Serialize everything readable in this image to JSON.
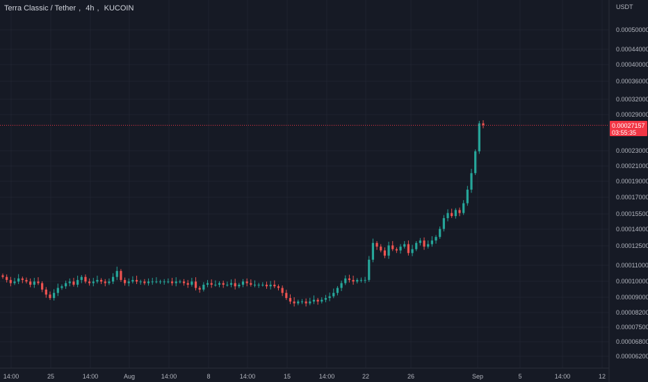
{
  "header": {
    "symbol": "Terra Classic / Tether",
    "interval": "4h",
    "exchange": "KUCOIN"
  },
  "price_axis": {
    "currency": "USDT",
    "labels": [
      "0.00050000",
      "0.00044000",
      "0.00040000",
      "0.00036000",
      "0.00032000",
      "0.00029000",
      "0.00023000",
      "0.00021000",
      "0.00019000",
      "0.00017000",
      "0.00015500",
      "0.00014000",
      "0.00012500",
      "0.00011000",
      "0.00010000",
      "0.00009000",
      "0.00008200",
      "0.00007500",
      "0.00006800",
      "0.00006200"
    ]
  },
  "last_price": {
    "value": "0.00027157",
    "countdown": "03:55:35",
    "color": "#f23645"
  },
  "time_axis": {
    "labels": [
      "14:00",
      "25",
      "14:00",
      "Aug",
      "14:00",
      "8",
      "14:00",
      "15",
      "14:00",
      "22",
      "26",
      "Sep",
      "5",
      "14:00",
      "12"
    ]
  },
  "colors": {
    "up": "#26a69a",
    "down": "#ef5350",
    "background": "#161a25",
    "grid": "#1f2330"
  },
  "chart_data": {
    "type": "candlestick",
    "title": "Terra Classic / Tether, 4h, KUCOIN",
    "ylabel": "USDT",
    "y_scale": "log",
    "ylim": [
      6e-05,
      0.0006
    ],
    "x_tick_labels": [
      "14:00",
      "25",
      "14:00",
      "Aug",
      "14:00",
      "8",
      "14:00",
      "15",
      "14:00",
      "22",
      "26",
      "Sep",
      "5",
      "14:00",
      "12"
    ],
    "last_price": 0.00027157,
    "close_series_approx": [
      0.000103,
      0.000101,
      9.9e-05,
      0.0001,
      0.000102,
      0.000101,
      0.0001,
      9.8e-05,
      0.0001,
      9.9e-05,
      9.5e-05,
      9.2e-05,
      9e-05,
      9.3e-05,
      9.6e-05,
      9.7e-05,
      9.9e-05,
      0.0001,
      9.8e-05,
      0.000101,
      0.000103,
      0.0001,
      9.9e-05,
      0.0001,
      0.000101,
      0.0001,
      9.9e-05,
      0.0001,
      0.000103,
      0.000107,
      0.000101,
      9.9e-05,
      0.0001,
      0.000101,
      0.0001,
      0.0001,
      9.9e-05,
      0.0001,
      0.0001,
      0.0001,
      0.0001,
      0.0001,
      0.0001,
      9.9e-05,
      0.0001,
      0.0001,
      9.9e-05,
      9.8e-05,
      0.0001,
      9.6e-05,
      9.5e-05,
      9.8e-05,
      9.9e-05,
      9.8e-05,
      9.8e-05,
      9.9e-05,
      9.8e-05,
      9.8e-05,
      9.9e-05,
      9.7e-05,
      9.8e-05,
      0.0001,
      9.9e-05,
      9.8e-05,
      9.8e-05,
      9.8e-05,
      9.8e-05,
      9.7e-05,
      9.8e-05,
      9.7e-05,
      9.6e-05,
      9.3e-05,
      9e-05,
      8.8e-05,
      8.7e-05,
      8.8e-05,
      8.8e-05,
      8.7e-05,
      8.8e-05,
      8.9e-05,
      8.8e-05,
      8.9e-05,
      9e-05,
      9.1e-05,
      9.3e-05,
      9.6e-05,
      9.9e-05,
      0.000102,
      0.000101,
      0.0001,
      0.000101,
      0.000101,
      0.000101,
      0.000115,
      0.000128,
      0.000125,
      0.000122,
      0.000118,
      0.000126,
      0.000123,
      0.000122,
      0.000125,
      0.000127,
      0.00012,
      0.000123,
      0.000128,
      0.00013,
      0.000125,
      0.000127,
      0.00013,
      0.000133,
      0.00014,
      0.00015,
      0.000155,
      0.000152,
      0.000158,
      0.000155,
      0.000165,
      0.00018,
      0.0002,
      0.00023,
      0.000275,
      0.000272
    ]
  }
}
